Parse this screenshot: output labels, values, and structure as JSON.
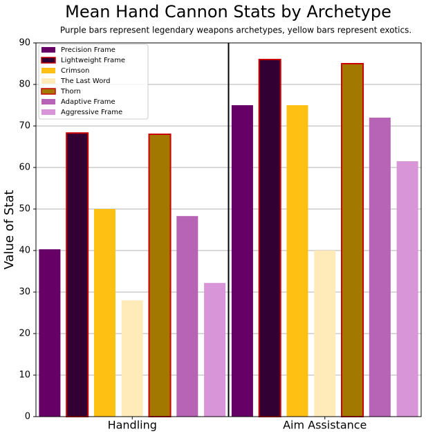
{
  "chart_data": {
    "type": "bar",
    "title": "Mean Hand Cannon Stats by Archetype",
    "subtitle": "Purple bars represent legendary weapons archetypes, yellow bars represent exotics.",
    "y_label": "Value of Stat",
    "categories": [
      "Handling",
      "Aim Assistance"
    ],
    "series": [
      {
        "name": "Precision Frame",
        "color": "#660066",
        "values": [
          40.3,
          75
        ]
      },
      {
        "name": "Lightweight Frame",
        "color": "#330033",
        "edgecolor": "#cc0000",
        "values": [
          68.3,
          86
        ]
      },
      {
        "name": "Crimson",
        "color": "#ffc014",
        "values": [
          50,
          75
        ]
      },
      {
        "name": "The Last Word",
        "color": "#ffebb9",
        "values": [
          28,
          40
        ]
      },
      {
        "name": "Thorn",
        "color": "#a37800",
        "edgecolor": "#cc0000",
        "values": [
          68,
          85
        ]
      },
      {
        "name": "Adaptive Frame",
        "color": "#b764b7",
        "values": [
          48.3,
          72
        ]
      },
      {
        "name": "Aggressive Frame",
        "color": "#d895d8",
        "values": [
          32.2,
          61.5
        ]
      }
    ],
    "ylim": [
      0,
      90
    ],
    "yticks": [
      0,
      10,
      20,
      30,
      40,
      50,
      60,
      70,
      80,
      90
    ],
    "grid": true,
    "legend": "upper left"
  }
}
